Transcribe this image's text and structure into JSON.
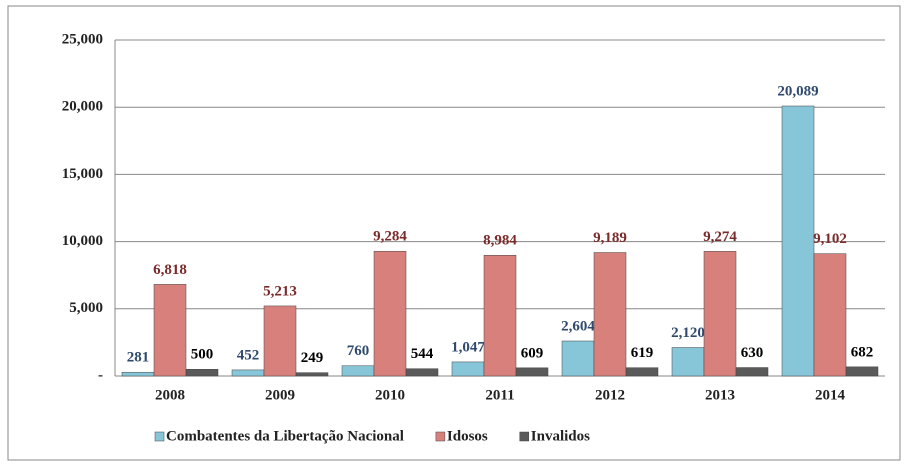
{
  "chart_data": {
    "type": "bar",
    "categories": [
      "2008",
      "2009",
      "2010",
      "2011",
      "2012",
      "2013",
      "2014"
    ],
    "series": [
      {
        "name": "Combatentes da Libertação Nacional",
        "color": "#86c6d8",
        "label_color": "#2f4a6e",
        "values": [
          281,
          452,
          760,
          1047,
          2604,
          2120,
          20089
        ],
        "value_labels": [
          "281",
          "452",
          "760",
          "1,047",
          "2,604",
          "2,120",
          "20,089"
        ]
      },
      {
        "name": "Idosos",
        "color": "#d8817c",
        "label_color": "#7a2a2a",
        "values": [
          6818,
          5213,
          9284,
          8984,
          9189,
          9274,
          9102
        ],
        "value_labels": [
          "6,818",
          "5,213",
          "9,284",
          "8,984",
          "9,189",
          "9,274",
          "9,102"
        ]
      },
      {
        "name": "Invalidos",
        "color": "#5a5a5a",
        "label_color": "#000000",
        "values": [
          500,
          249,
          544,
          609,
          619,
          630,
          682
        ],
        "value_labels": [
          "500",
          "249",
          "544",
          "609",
          "619",
          "630",
          "682"
        ]
      }
    ],
    "ylim": [
      0,
      25000
    ],
    "yticks": [
      {
        "value": 0,
        "label": "-"
      },
      {
        "value": 5000,
        "label": "5,000"
      },
      {
        "value": 10000,
        "label": "10,000"
      },
      {
        "value": 15000,
        "label": "15,000"
      },
      {
        "value": 20000,
        "label": "20,000"
      },
      {
        "value": 25000,
        "label": "25,000"
      }
    ],
    "grid": true,
    "legend": "bottom"
  }
}
